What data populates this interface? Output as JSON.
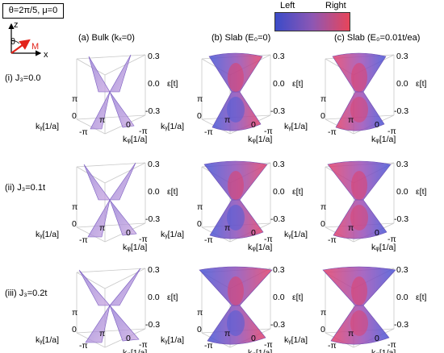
{
  "parameters": "θ=2π/5, μ=0",
  "colorbar": {
    "left_label": "Left",
    "right_label": "Right",
    "colors": [
      "#3b4bc8",
      "#e8455a"
    ]
  },
  "axes_icon": {
    "z": "z",
    "x": "x",
    "theta": "θ",
    "m": "M",
    "m_color": "#e2231a"
  },
  "columns": [
    "(a) Bulk (kₓ=0)",
    "(b) Slab (E₀=0)",
    "(c) Slab (E₀=0.01t/ea)"
  ],
  "rows": [
    "(i) J₃=0.0",
    "(ii) J₃=0.1t",
    "(iii) J₃=0.2t"
  ],
  "axis_labels": {
    "energy_ticks": [
      "0.3",
      "0.0",
      "-0.3"
    ],
    "energy_label": "ε[t]",
    "ky_ticks": [
      "π",
      "0",
      "-π"
    ],
    "ky_label": "kᵧ[1/a]",
    "kz_ticks": [
      "π",
      "0",
      "-π"
    ],
    "kz_label": "kᵩ[1/a]"
  },
  "surface_colors": {
    "bulk": "#b79ad9",
    "left": "#4a5ad8",
    "right": "#e0406a",
    "mixed": "#9b59c0"
  }
}
